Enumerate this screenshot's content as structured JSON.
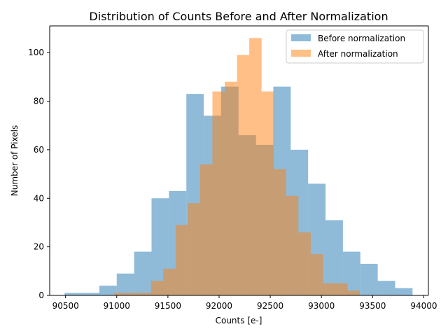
{
  "chart_data": {
    "type": "bar",
    "subtype": "histogram",
    "title": "Distribution of Counts Before and After Normalization",
    "xlabel": "Counts [e-]",
    "ylabel": "Number of Pixels",
    "xlim": [
      90345,
      94045
    ],
    "ylim": [
      0,
      111
    ],
    "xticks": [
      90500,
      91000,
      91500,
      92000,
      92500,
      93000,
      93500,
      94000
    ],
    "yticks": [
      0,
      20,
      40,
      60,
      80,
      100
    ],
    "grid": false,
    "legend_position": "top-right",
    "series": [
      {
        "name": "Before normalization",
        "color": "#1f77b4",
        "opacity": 0.5,
        "bins": [
          {
            "x0": 90490,
            "x1": 90660,
            "count": 1
          },
          {
            "x0": 90660,
            "x1": 90830,
            "count": 1
          },
          {
            "x0": 90830,
            "x1": 91000,
            "count": 4
          },
          {
            "x0": 91000,
            "x1": 91170,
            "count": 9
          },
          {
            "x0": 91170,
            "x1": 91340,
            "count": 18
          },
          {
            "x0": 91340,
            "x1": 91510,
            "count": 40
          },
          {
            "x0": 91510,
            "x1": 91680,
            "count": 43
          },
          {
            "x0": 91680,
            "x1": 91850,
            "count": 83
          },
          {
            "x0": 91850,
            "x1": 92020,
            "count": 74
          },
          {
            "x0": 92020,
            "x1": 92190,
            "count": 86
          },
          {
            "x0": 92190,
            "x1": 92360,
            "count": 66
          },
          {
            "x0": 92360,
            "x1": 92530,
            "count": 62
          },
          {
            "x0": 92530,
            "x1": 92700,
            "count": 86
          },
          {
            "x0": 92700,
            "x1": 92870,
            "count": 60
          },
          {
            "x0": 92870,
            "x1": 93040,
            "count": 46
          },
          {
            "x0": 93040,
            "x1": 93210,
            "count": 31
          },
          {
            "x0": 93210,
            "x1": 93380,
            "count": 18
          },
          {
            "x0": 93380,
            "x1": 93550,
            "count": 13
          },
          {
            "x0": 93550,
            "x1": 93720,
            "count": 6
          },
          {
            "x0": 93720,
            "x1": 93890,
            "count": 3
          }
        ]
      },
      {
        "name": "After normalization",
        "color": "#ff7f0e",
        "opacity": 0.5,
        "bins": [
          {
            "x0": 90975,
            "x1": 91095,
            "count": 1
          },
          {
            "x0": 91095,
            "x1": 91215,
            "count": 1
          },
          {
            "x0": 91215,
            "x1": 91335,
            "count": 1
          },
          {
            "x0": 91335,
            "x1": 91455,
            "count": 6
          },
          {
            "x0": 91455,
            "x1": 91575,
            "count": 11
          },
          {
            "x0": 91575,
            "x1": 91695,
            "count": 29
          },
          {
            "x0": 91695,
            "x1": 91815,
            "count": 38
          },
          {
            "x0": 91815,
            "x1": 91935,
            "count": 54
          },
          {
            "x0": 91935,
            "x1": 92055,
            "count": 84
          },
          {
            "x0": 92055,
            "x1": 92175,
            "count": 88
          },
          {
            "x0": 92175,
            "x1": 92295,
            "count": 99
          },
          {
            "x0": 92295,
            "x1": 92415,
            "count": 106
          },
          {
            "x0": 92415,
            "x1": 92535,
            "count": 84
          },
          {
            "x0": 92535,
            "x1": 92655,
            "count": 52
          },
          {
            "x0": 92655,
            "x1": 92775,
            "count": 41
          },
          {
            "x0": 92775,
            "x1": 92895,
            "count": 26
          },
          {
            "x0": 92895,
            "x1": 93015,
            "count": 17
          },
          {
            "x0": 93015,
            "x1": 93135,
            "count": 5
          },
          {
            "x0": 93135,
            "x1": 93255,
            "count": 5
          },
          {
            "x0": 93255,
            "x1": 93375,
            "count": 2
          }
        ]
      }
    ]
  }
}
